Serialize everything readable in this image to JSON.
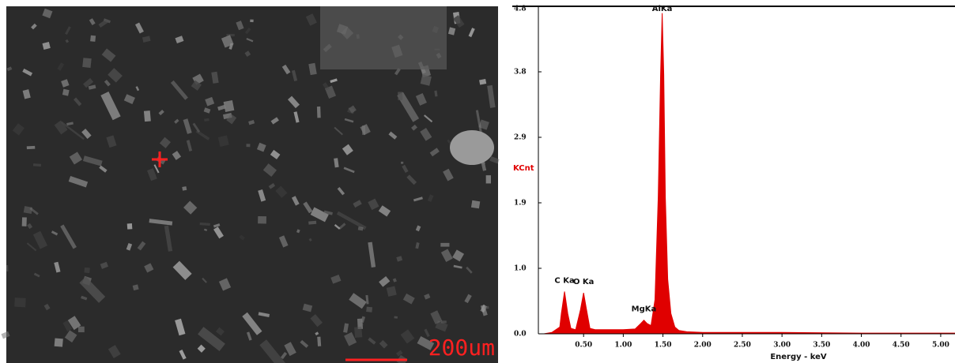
{
  "image": {
    "scale_label": "200um"
  },
  "chart_data": {
    "type": "area",
    "x": [
      0.0,
      0.1,
      0.2,
      0.22,
      0.26,
      0.3,
      0.34,
      0.4,
      0.46,
      0.5,
      0.53,
      0.58,
      0.65,
      0.8,
      1.0,
      1.15,
      1.22,
      1.26,
      1.3,
      1.35,
      1.4,
      1.44,
      1.47,
      1.49,
      1.51,
      1.53,
      1.56,
      1.6,
      1.65,
      1.7,
      1.8,
      2.0,
      3.0,
      4.0,
      5.0,
      5.18
    ],
    "values": [
      0,
      0.02,
      0.1,
      0.3,
      0.62,
      0.3,
      0.08,
      0.06,
      0.35,
      0.6,
      0.4,
      0.08,
      0.06,
      0.06,
      0.06,
      0.07,
      0.15,
      0.2,
      0.15,
      0.12,
      0.5,
      2.0,
      3.8,
      4.7,
      3.8,
      2.0,
      0.8,
      0.3,
      0.1,
      0.05,
      0.03,
      0.02,
      0.02,
      0.01,
      0.01,
      0.01
    ],
    "color": "#e00000",
    "xlabel": "Energy - keV",
    "ylabel": "KCnt",
    "xlim": [
      0,
      5.18
    ],
    "ylim": [
      0,
      4.8
    ],
    "xticks": [
      {
        "value": 0.5,
        "label": "0.50"
      },
      {
        "value": 1,
        "label": "1.00"
      },
      {
        "value": 1.5,
        "label": "1.50"
      },
      {
        "value": 2,
        "label": "2.00"
      },
      {
        "value": 2.5,
        "label": "2.50"
      },
      {
        "value": 3,
        "label": "3.00"
      },
      {
        "value": 3.5,
        "label": "3.50"
      },
      {
        "value": 4,
        "label": "4.00"
      },
      {
        "value": 4.5,
        "label": "4.50"
      },
      {
        "value": 5,
        "label": "5.00"
      }
    ],
    "yticks": [
      {
        "value": 0,
        "label": "0.0"
      },
      {
        "value": 0.96,
        "label": "1.0"
      },
      {
        "value": 1.92,
        "label": "1.9"
      },
      {
        "value": 2.88,
        "label": "2.9"
      },
      {
        "value": 3.84,
        "label": "3.8"
      },
      {
        "value": 4.8,
        "label": "4.8"
      }
    ],
    "annotations": [
      {
        "text": "C Ka",
        "x": 0.26,
        "y": 0.62
      },
      {
        "text": "O Ka",
        "x": 0.5,
        "y": 0.6
      },
      {
        "text": "MgKa",
        "x": 1.26,
        "y": 0.2
      },
      {
        "text": "AlKa",
        "x": 1.49,
        "y": 4.7
      }
    ]
  }
}
